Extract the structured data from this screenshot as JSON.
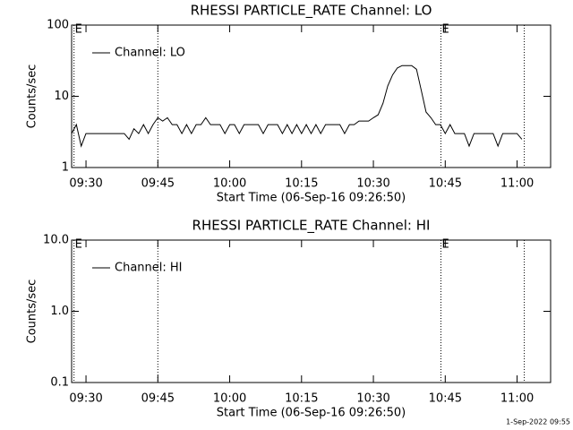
{
  "chart_data": [
    {
      "type": "line",
      "title": "RHESSI PARTICLE_RATE Channel: LO",
      "x_label": "Start Time (06-Sep-16 09:26:50)",
      "y_label": "Counts/sec",
      "log_y": true,
      "xlim": [
        567,
        667
      ],
      "ylim": [
        1,
        100
      ],
      "yticks": [
        1,
        10,
        100
      ],
      "xticks": [
        {
          "value": 570,
          "label": "09:30"
        },
        {
          "value": 585,
          "label": "09:45"
        },
        {
          "value": 600,
          "label": "10:00"
        },
        {
          "value": 615,
          "label": "10:15"
        },
        {
          "value": 630,
          "label": "10:30"
        },
        {
          "value": 645,
          "label": "10:45"
        },
        {
          "value": 660,
          "label": "11:00"
        }
      ],
      "markers": [
        {
          "x": 567.5,
          "label": "E"
        },
        {
          "x": 585
        },
        {
          "x": 644.1,
          "label": "E"
        },
        {
          "x": 661.5
        }
      ],
      "series": [
        {
          "name": "Channel: LO",
          "color": "#000000",
          "x": [
            567,
            568,
            569,
            570,
            571,
            572,
            573,
            574,
            575,
            576,
            577,
            578,
            579,
            580,
            581,
            582,
            583,
            584,
            585,
            586,
            587,
            588,
            589,
            590,
            591,
            592,
            593,
            594,
            595,
            596,
            597,
            598,
            599,
            600,
            601,
            602,
            603,
            604,
            605,
            606,
            607,
            608,
            609,
            610,
            611,
            612,
            613,
            614,
            615,
            616,
            617,
            618,
            619,
            620,
            621,
            622,
            623,
            624,
            625,
            626,
            627,
            628,
            629,
            630,
            631,
            632,
            633,
            634,
            635,
            636,
            637,
            638,
            639,
            640,
            641,
            642,
            643,
            644,
            645,
            646,
            647,
            648,
            649,
            650,
            651,
            652,
            653,
            654,
            655,
            656,
            657,
            658,
            659,
            660,
            661
          ],
          "values": [
            3,
            4,
            2,
            3,
            3,
            3,
            3,
            3,
            3,
            3,
            3,
            3,
            2.5,
            3.5,
            3,
            4,
            3,
            4,
            5,
            4.5,
            5,
            4,
            4,
            3,
            4,
            3,
            4,
            4,
            5,
            4,
            4,
            4,
            3,
            4,
            4,
            3,
            4,
            4,
            4,
            4,
            3,
            4,
            4,
            4,
            3,
            4,
            3,
            4,
            3,
            4,
            3,
            4,
            3,
            4,
            4,
            4,
            4,
            3,
            4,
            4,
            4.5,
            4.5,
            4.5,
            5,
            5.5,
            8,
            14,
            20,
            25,
            27,
            27,
            27,
            24,
            12,
            6,
            5,
            4,
            4,
            3,
            4,
            3,
            3,
            3,
            2,
            3,
            3,
            3,
            3,
            3,
            2,
            3,
            3,
            3,
            3,
            2.5
          ]
        }
      ]
    },
    {
      "type": "line",
      "title": "RHESSI PARTICLE_RATE Channel: HI",
      "x_label": "Start Time (06-Sep-16 09:26:50)",
      "y_label": "Counts/sec",
      "log_y": true,
      "xlim": [
        567,
        667
      ],
      "ylim": [
        0.1,
        10
      ],
      "yticks": [
        0.1,
        {
          "value": 1,
          "label": "1.0"
        },
        {
          "value": 10,
          "label": "10.0"
        }
      ],
      "xticks": [
        {
          "value": 570,
          "label": "09:30"
        },
        {
          "value": 585,
          "label": "09:45"
        },
        {
          "value": 600,
          "label": "10:00"
        },
        {
          "value": 615,
          "label": "10:15"
        },
        {
          "value": 630,
          "label": "10:30"
        },
        {
          "value": 645,
          "label": "10:45"
        },
        {
          "value": 660,
          "label": "11:00"
        }
      ],
      "markers": [
        {
          "x": 567.5,
          "label": "E"
        },
        {
          "x": 585
        },
        {
          "x": 644.1,
          "label": "E"
        },
        {
          "x": 661.5
        }
      ],
      "series": [
        {
          "name": "Channel: HI",
          "color": "#000000",
          "x": [],
          "values": []
        }
      ]
    }
  ],
  "footer": "1-Sep-2022 09:55"
}
